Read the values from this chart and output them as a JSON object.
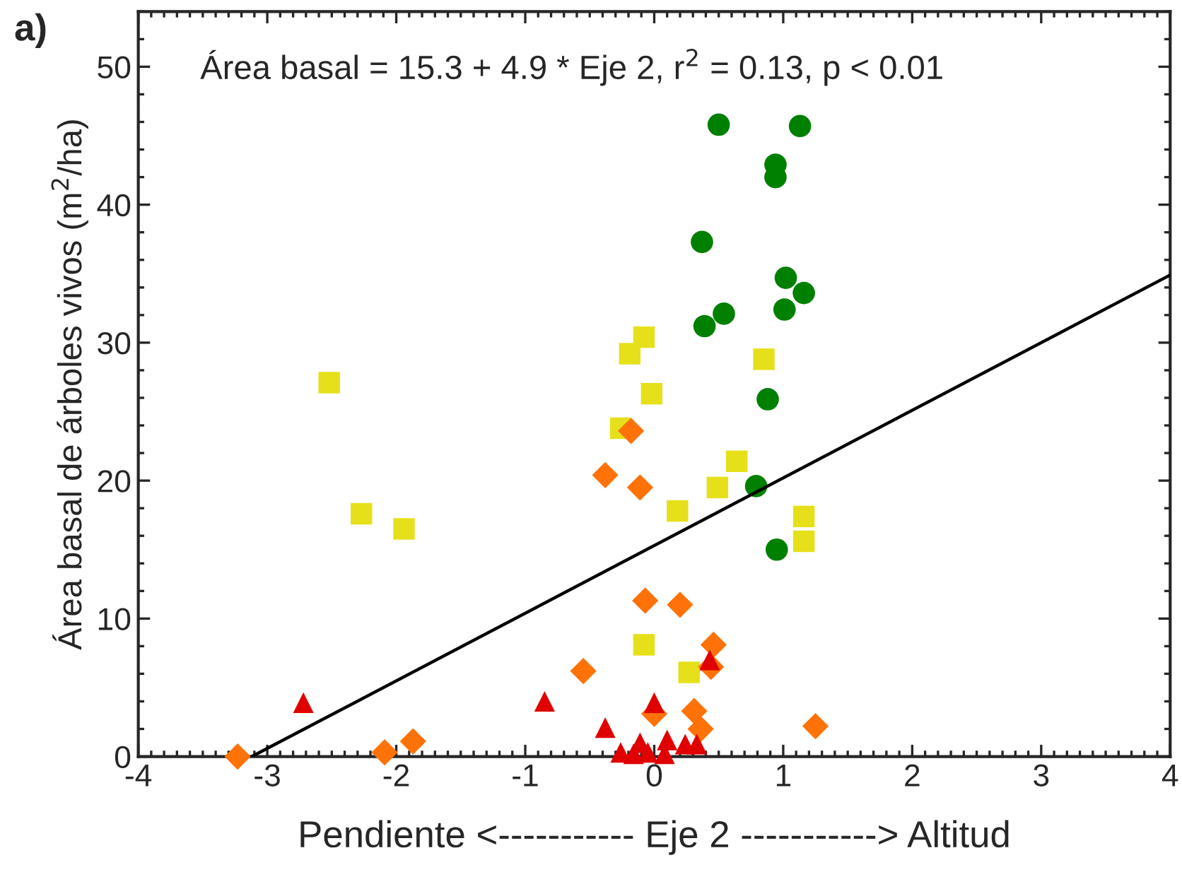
{
  "chart_data": {
    "type": "scatter",
    "xlabel": "Pendiente <----------- Eje 2 -----------> Altitud",
    "ylabel": "Área basal de árboles vivos (m$^{2}$/ha)",
    "annotations": [
      "a)",
      "Área basal = 15.3 + 4.9 * Eje 2, r$^{2}$ = 0.13, p < 0.01"
    ],
    "xlim": [
      -4,
      4
    ],
    "xticks": [
      -4,
      -3,
      -2,
      -1,
      0,
      1,
      2,
      3,
      4
    ],
    "ylim": [
      0,
      54
    ],
    "yticks": [
      0,
      10,
      20,
      30,
      40,
      50
    ],
    "grid": false,
    "legend": false,
    "series": [
      {
        "marker": "circle",
        "color": "#008000",
        "x": [
          0.5,
          1.13,
          0.94,
          0.94,
          0.37,
          1.02,
          1.16,
          1.01,
          0.54,
          0.39,
          0.88,
          0.79,
          0.95
        ],
        "values": [
          45.8,
          45.7,
          42.9,
          42.0,
          37.3,
          34.7,
          33.6,
          32.4,
          32.1,
          31.2,
          25.9,
          19.6,
          15.0
        ]
      },
      {
        "marker": "square",
        "color": "#e6e01a",
        "x": [
          -2.52,
          -2.27,
          -1.94,
          -0.08,
          -0.19,
          -0.02,
          -0.26,
          0.64,
          0.49,
          0.18,
          0.85,
          1.16,
          1.16,
          -0.08,
          0.27
        ],
        "values": [
          27.1,
          17.6,
          16.5,
          30.4,
          29.2,
          26.3,
          23.8,
          21.4,
          19.5,
          17.8,
          28.8,
          17.4,
          15.6,
          8.1,
          6.1
        ]
      },
      {
        "marker": "diamond",
        "color": "#ff7208",
        "x": [
          -0.18,
          -0.38,
          -0.11,
          -0.07,
          0.2,
          0.46,
          0.44,
          -0.55,
          0.31,
          0.0,
          0.36,
          1.25,
          -3.23,
          -2.09,
          -1.87
        ],
        "values": [
          23.6,
          20.4,
          19.5,
          11.3,
          11.0,
          8.1,
          6.5,
          6.2,
          3.3,
          3.1,
          2.0,
          2.2,
          0,
          0.3,
          1.1
        ]
      },
      {
        "marker": "triangle",
        "color": "#e00000",
        "x": [
          -2.72,
          -0.85,
          -0.38,
          0.0,
          0.43,
          -0.26,
          -0.11,
          -0.05,
          0.1,
          0.08,
          0.24,
          0.33,
          -0.16
        ],
        "values": [
          3.9,
          4.0,
          2.1,
          3.9,
          7.0,
          0.3,
          1.0,
          0.3,
          1.2,
          0.2,
          0.9,
          0.9,
          0.2
        ]
      },
      {
        "type": "line",
        "marker": "none",
        "line_style": "solid",
        "color": "#000000",
        "x": [
          -3.12,
          4
        ],
        "values": [
          0,
          34.9
        ]
      }
    ]
  }
}
